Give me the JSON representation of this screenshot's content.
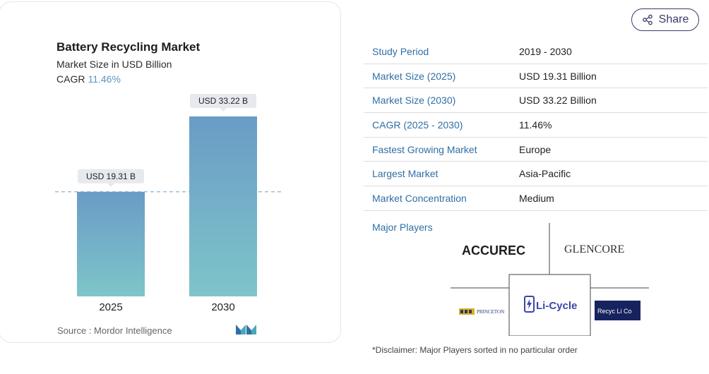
{
  "chart": {
    "title": "Battery Recycling Market",
    "subtitle": "Market Size in USD Billion",
    "cagr_label": "CAGR",
    "cagr_value": "11.46%",
    "source": "Source :  Mordor Intelligence"
  },
  "chart_data": {
    "type": "bar",
    "categories": [
      "2025",
      "2030"
    ],
    "values": [
      19.31,
      33.22
    ],
    "data_labels": [
      "USD 19.31 B",
      "USD 33.22 B"
    ],
    "title": "Battery Recycling Market",
    "subtitle": "Market Size in USD Billion",
    "xlabel": "",
    "ylabel": "",
    "grid": false,
    "reference_line_value": 19.31
  },
  "share": {
    "label": "Share"
  },
  "info_rows": [
    {
      "key": "Study Period",
      "value": "2019 - 2030"
    },
    {
      "key": "Market Size (2025)",
      "value": "USD 19.31 Billion"
    },
    {
      "key": "Market Size (2030)",
      "value": "USD 33.22 Billion"
    },
    {
      "key": "CAGR (2025 - 2030)",
      "value": "11.46%"
    },
    {
      "key": "Fastest Growing Market",
      "value": "Europe"
    },
    {
      "key": "Largest Market",
      "value": "Asia-Pacific"
    },
    {
      "key": "Market Concentration",
      "value": "Medium"
    }
  ],
  "major_players": {
    "label": "Major Players",
    "logos": [
      "ACCUREC",
      "GLENCORE",
      "PRINCETON",
      "Li-Cycle",
      "Recyc Li Co"
    ]
  },
  "disclaimer": "*Disclaimer: Major Players sorted in no particular order",
  "colors": {
    "key_text": "#2f6fa6",
    "bar_top": "#6a9cc6",
    "bar_bottom": "#7cc4c8",
    "cagr": "#5a95c2"
  }
}
